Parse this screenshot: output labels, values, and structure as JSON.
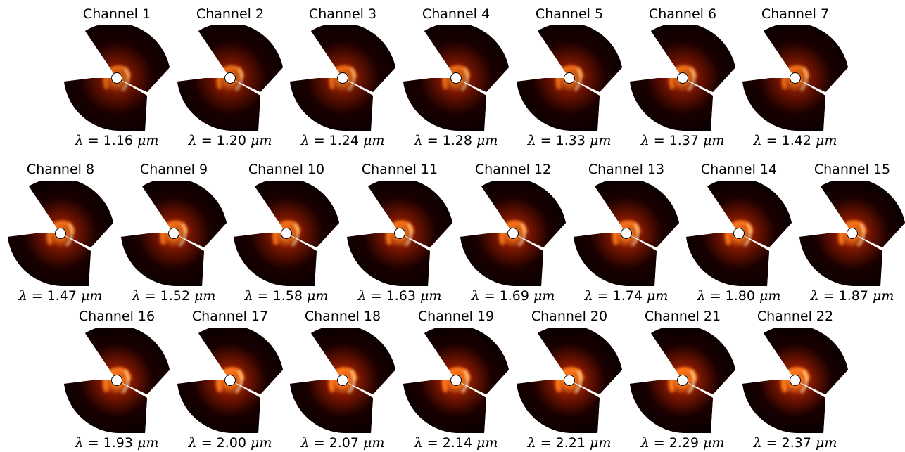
{
  "panels": [
    {
      "title": "Channel 1",
      "symbol": "λ",
      "eq": " = ",
      "value": "1.16",
      "unit": "μm",
      "brightness": 0.55
    },
    {
      "title": "Channel 2",
      "symbol": "λ",
      "eq": " = ",
      "value": "1.20",
      "unit": "μm",
      "brightness": 0.6
    },
    {
      "title": "Channel 3",
      "symbol": "λ",
      "eq": " = ",
      "value": "1.24",
      "unit": "μm",
      "brightness": 0.62
    },
    {
      "title": "Channel 4",
      "symbol": "λ",
      "eq": " = ",
      "value": "1.28",
      "unit": "μm",
      "brightness": 0.64
    },
    {
      "title": "Channel 5",
      "symbol": "λ",
      "eq": " = ",
      "value": "1.33",
      "unit": "μm",
      "brightness": 0.66
    },
    {
      "title": "Channel 6",
      "symbol": "λ",
      "eq": " = ",
      "value": "1.37",
      "unit": "μm",
      "brightness": 0.68
    },
    {
      "title": "Channel 7",
      "symbol": "λ",
      "eq": " = ",
      "value": "1.42",
      "unit": "μm",
      "brightness": 0.66
    },
    {
      "title": "Channel 8",
      "symbol": "λ",
      "eq": " = ",
      "value": "1.47",
      "unit": "μm",
      "brightness": 0.72
    },
    {
      "title": "Channel 9",
      "symbol": "λ",
      "eq": " = ",
      "value": "1.52",
      "unit": "μm",
      "brightness": 0.74
    },
    {
      "title": "Channel 10",
      "symbol": "λ",
      "eq": " = ",
      "value": "1.58",
      "unit": "μm",
      "brightness": 0.76
    },
    {
      "title": "Channel 11",
      "symbol": "λ",
      "eq": " = ",
      "value": "1.63",
      "unit": "μm",
      "brightness": 0.78
    },
    {
      "title": "Channel 12",
      "symbol": "λ",
      "eq": " = ",
      "value": "1.69",
      "unit": "μm",
      "brightness": 0.8
    },
    {
      "title": "Channel 13",
      "symbol": "λ",
      "eq": " = ",
      "value": "1.74",
      "unit": "μm",
      "brightness": 0.82
    },
    {
      "title": "Channel 14",
      "symbol": "λ",
      "eq": " = ",
      "value": "1.80",
      "unit": "μm",
      "brightness": 0.84
    },
    {
      "title": "Channel 15",
      "symbol": "λ",
      "eq": " = ",
      "value": "1.87",
      "unit": "μm",
      "brightness": 0.86
    },
    {
      "title": "Channel 16",
      "symbol": "λ",
      "eq": " = ",
      "value": "1.93",
      "unit": "μm",
      "brightness": 0.9
    },
    {
      "title": "Channel 17",
      "symbol": "λ",
      "eq": " = ",
      "value": "2.00",
      "unit": "μm",
      "brightness": 0.93
    },
    {
      "title": "Channel 18",
      "symbol": "λ",
      "eq": " = ",
      "value": "2.07",
      "unit": "μm",
      "brightness": 0.95
    },
    {
      "title": "Channel 19",
      "symbol": "λ",
      "eq": " = ",
      "value": "2.14",
      "unit": "μm",
      "brightness": 0.96
    },
    {
      "title": "Channel 20",
      "symbol": "λ",
      "eq": " = ",
      "value": "2.21",
      "unit": "μm",
      "brightness": 0.97
    },
    {
      "title": "Channel 21",
      "symbol": "λ",
      "eq": " = ",
      "value": "2.29",
      "unit": "μm",
      "brightness": 0.98
    },
    {
      "title": "Channel 22",
      "symbol": "λ",
      "eq": " = ",
      "value": "2.37",
      "unit": "μm",
      "brightness": 1.0
    }
  ],
  "colors": {
    "background": "#ffffff",
    "map_dark": "#1a0000",
    "map_mid": "#8a1a00",
    "map_bright": "#ff7a1a",
    "map_peak": "#fff2c0",
    "mask": "#ffffff",
    "mask_outline": "#000000"
  }
}
